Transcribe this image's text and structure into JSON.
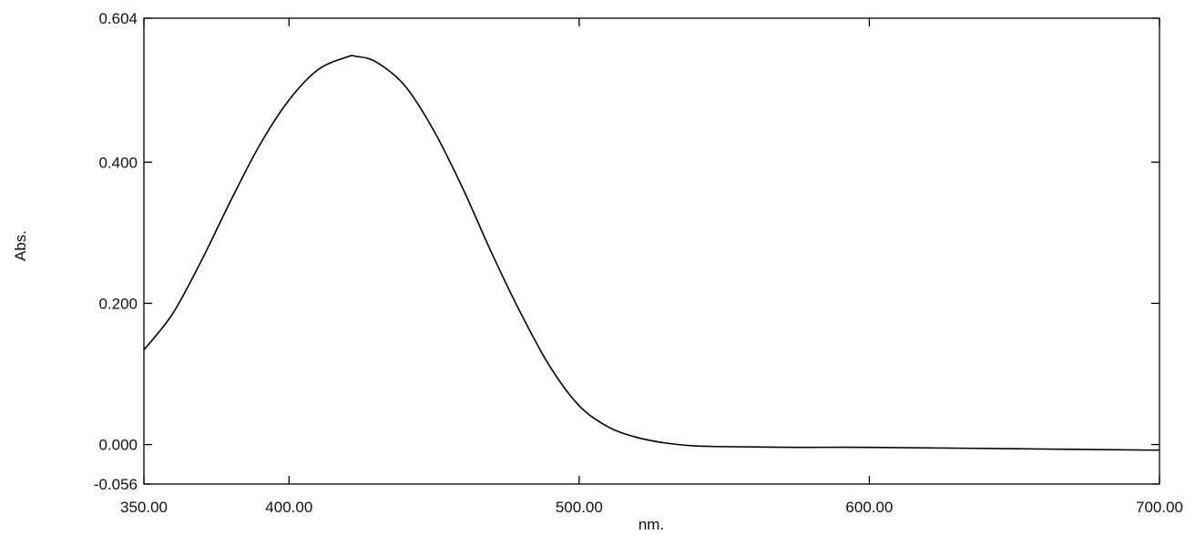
{
  "chart_data": {
    "type": "line",
    "xlabel": "nm.",
    "ylabel": "Abs.",
    "xlim": [
      350.0,
      700.0
    ],
    "ylim": [
      -0.056,
      0.604
    ],
    "xticks": [
      "350.00",
      "400.00",
      "500.00",
      "600.00",
      "700.00"
    ],
    "xtick_values": [
      350,
      400,
      500,
      600,
      700
    ],
    "yticks": [
      "-0.056",
      "0.000",
      "0.200",
      "0.400",
      "0.604"
    ],
    "ytick_values": [
      -0.056,
      0.0,
      0.2,
      0.4,
      0.604
    ],
    "grid": false,
    "line_color": "#000000",
    "series": [
      {
        "x": [
          350,
          360,
          370,
          380,
          390,
          400,
          410,
          420,
          423,
          430,
          440,
          450,
          460,
          470,
          480,
          490,
          500,
          510,
          520,
          530,
          540,
          550,
          575,
          600,
          650,
          700
        ],
        "y": [
          0.134,
          0.186,
          0.262,
          0.346,
          0.425,
          0.488,
          0.531,
          0.549,
          0.55,
          0.542,
          0.508,
          0.444,
          0.362,
          0.27,
          0.185,
          0.11,
          0.055,
          0.025,
          0.01,
          0.002,
          -0.002,
          -0.003,
          -0.004,
          -0.004,
          -0.006,
          -0.008
        ]
      }
    ]
  }
}
